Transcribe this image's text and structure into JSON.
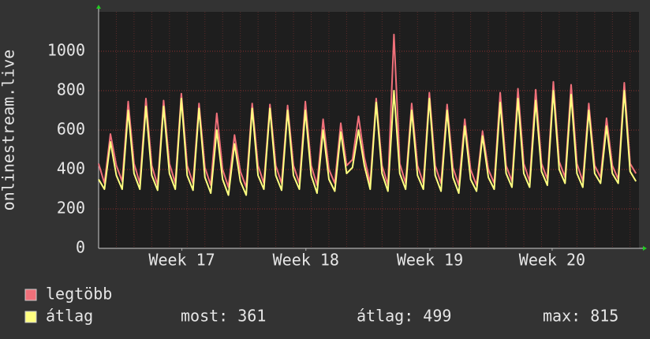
{
  "chart_data": {
    "type": "line",
    "y_label": "onlinestream.live",
    "x": [
      0,
      0.33,
      0.67,
      1,
      1.33,
      1.67,
      2,
      2.33,
      2.67,
      3,
      3.33,
      3.67,
      4,
      4.33,
      4.67,
      5,
      5.33,
      5.67,
      6,
      6.33,
      6.67,
      7,
      7.33,
      7.67,
      8,
      8.33,
      8.67,
      9,
      9.33,
      9.67,
      10,
      10.33,
      10.67,
      11,
      11.33,
      11.67,
      12,
      12.33,
      12.67,
      13,
      13.33,
      13.67,
      14,
      14.33,
      14.67,
      15,
      15.33,
      15.67,
      16,
      16.33,
      16.67,
      17,
      17.33,
      17.67,
      18,
      18.33,
      18.67,
      19,
      19.33,
      19.67,
      20,
      20.33,
      20.67,
      21,
      21.33,
      21.67,
      22,
      22.33,
      22.67,
      23,
      23.33,
      23.67,
      24,
      24.33,
      24.67,
      25,
      25.33,
      25.67,
      26,
      26.33,
      26.67,
      27,
      27.33,
      27.67,
      28,
      28.33,
      28.67,
      29,
      29.33,
      29.67,
      30,
      30.33
    ],
    "series": [
      {
        "name": "legtöbb",
        "color": "#f0707a",
        "values": [
          430,
          330,
          580,
          420,
          340,
          745,
          430,
          330,
          760,
          420,
          320,
          750,
          430,
          330,
          785,
          420,
          330,
          735,
          410,
          320,
          685,
          400,
          310,
          575,
          390,
          310,
          735,
          420,
          330,
          730,
          420,
          330,
          725,
          420,
          330,
          745,
          420,
          320,
          655,
          400,
          330,
          635,
          420,
          450,
          670,
          460,
          330,
          760,
          420,
          320,
          1085,
          430,
          330,
          735,
          420,
          330,
          790,
          420,
          330,
          730,
          410,
          320,
          655,
          400,
          320,
          595,
          400,
          330,
          790,
          420,
          340,
          810,
          430,
          340,
          805,
          430,
          350,
          845,
          440,
          360,
          830,
          430,
          340,
          735,
          420,
          360,
          660,
          420,
          350,
          840,
          430,
          380
        ]
      },
      {
        "name": "átlag",
        "color": "#ffff80",
        "values": [
          350,
          300,
          540,
          370,
          300,
          700,
          380,
          300,
          720,
          370,
          295,
          720,
          380,
          300,
          760,
          370,
          295,
          710,
          360,
          280,
          600,
          350,
          270,
          530,
          340,
          270,
          710,
          370,
          300,
          710,
          370,
          295,
          700,
          370,
          300,
          700,
          370,
          280,
          600,
          350,
          290,
          590,
          380,
          410,
          600,
          420,
          300,
          740,
          380,
          290,
          800,
          380,
          300,
          700,
          370,
          300,
          760,
          370,
          290,
          700,
          360,
          280,
          620,
          350,
          290,
          570,
          360,
          300,
          740,
          380,
          310,
          760,
          380,
          310,
          750,
          390,
          320,
          800,
          400,
          330,
          780,
          380,
          310,
          700,
          380,
          330,
          620,
          380,
          330,
          800,
          390,
          340
        ]
      }
    ],
    "xlim": [
      0,
      30.5
    ],
    "xticks": [
      {
        "value": 4.7,
        "label": "Week 17"
      },
      {
        "value": 11.7,
        "label": "Week 18"
      },
      {
        "value": 18.7,
        "label": "Week 19"
      },
      {
        "value": 25.6,
        "label": "Week 20"
      }
    ],
    "ylim": [
      0,
      1200
    ],
    "yticks": [
      0,
      200,
      400,
      600,
      800,
      1000
    ],
    "grid": true,
    "stats": [
      "most: 361",
      "átlag: 499",
      "max: 815"
    ]
  }
}
